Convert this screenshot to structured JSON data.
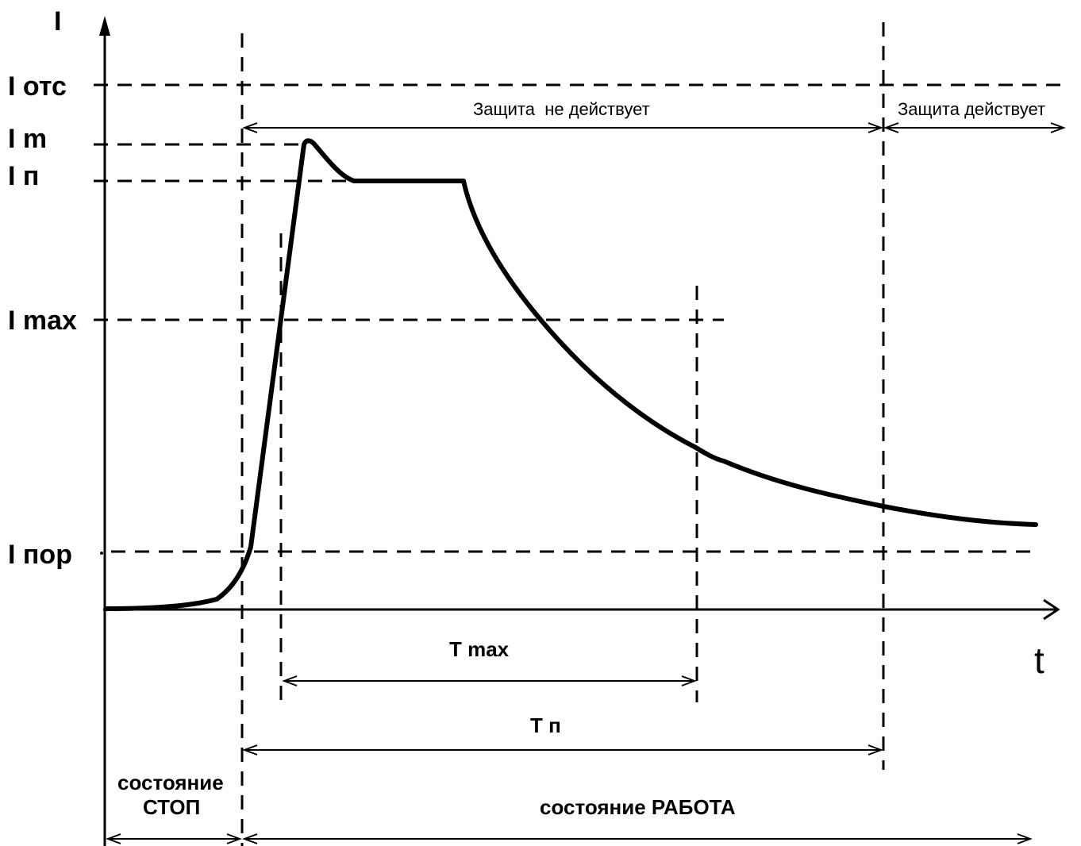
{
  "axes": {
    "y_label": "I",
    "x_label": "t"
  },
  "levels": {
    "i_otc": "I отс",
    "i_m": "I m",
    "i_p": "I п",
    "i_max": "I max",
    "i_por": "I пор"
  },
  "intervals": {
    "protection_off": "Защита  не действует",
    "protection_on": "Защита действует",
    "t_max": "T max",
    "t_p": "T п"
  },
  "states": {
    "stop_line1": "состояние",
    "stop_line2": "СТОП",
    "work": "состояние РАБОТА"
  }
}
